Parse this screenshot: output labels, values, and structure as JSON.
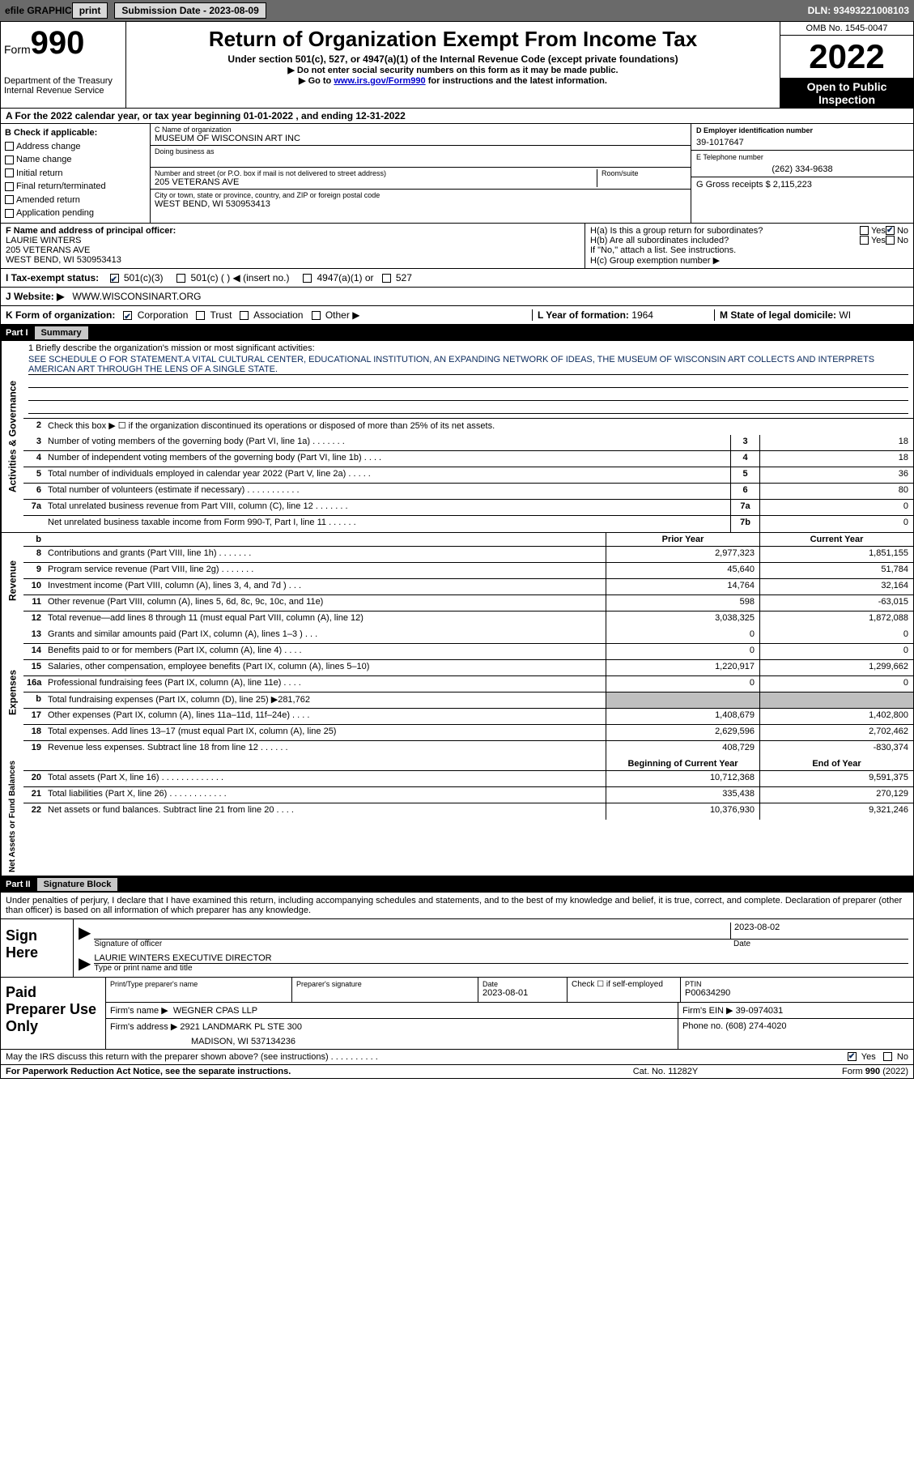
{
  "topbar": {
    "efile": "efile GRAPHIC",
    "print": "print",
    "submission_label": "Submission Date - 2023-08-09",
    "dln": "DLN: 93493221008103"
  },
  "header": {
    "form_word": "Form",
    "form_num": "990",
    "dept": "Department of the Treasury",
    "irs": "Internal Revenue Service",
    "title": "Return of Organization Exempt From Income Tax",
    "subtitle": "Under section 501(c), 527, or 4947(a)(1) of the Internal Revenue Code (except private foundations)",
    "note1": "▶ Do not enter social security numbers on this form as it may be made public.",
    "note2_pre": "▶ Go to ",
    "note2_link": "www.irs.gov/Form990",
    "note2_post": " for instructions and the latest information.",
    "omb": "OMB No. 1545-0047",
    "year": "2022",
    "open_public": "Open to Public Inspection"
  },
  "period": "A For the 2022 calendar year, or tax year beginning 01-01-2022   , and ending 12-31-2022",
  "section_b": {
    "label": "B Check if applicable:",
    "checks": [
      "Address change",
      "Name change",
      "Initial return",
      "Final return/terminated",
      "Amended return",
      "Application pending"
    ]
  },
  "section_c": {
    "name_label": "C Name of organization",
    "name": "MUSEUM OF WISCONSIN ART INC",
    "dba_label": "Doing business as",
    "street_label": "Number and street (or P.O. box if mail is not delivered to street address)",
    "room_label": "Room/suite",
    "street": "205 VETERANS AVE",
    "city_label": "City or town, state or province, country, and ZIP or foreign postal code",
    "city": "WEST BEND, WI  530953413"
  },
  "section_d": {
    "label": "D Employer identification number",
    "value": "39-1017647",
    "phone_label": "E Telephone number",
    "phone": "(262) 334-9638",
    "gross_label": "G Gross receipts $",
    "gross": "2,115,223"
  },
  "section_f": {
    "label": "F Name and address of principal officer:",
    "name": "LAURIE WINTERS",
    "street": "205 VETERANS AVE",
    "city": "WEST BEND, WI  530953413"
  },
  "section_h": {
    "ha": "H(a)  Is this a group return for subordinates?",
    "hb": "H(b)  Are all subordinates included?",
    "hb_note": "If \"No,\" attach a list. See instructions.",
    "hc": "H(c)  Group exemption number ▶"
  },
  "status": {
    "label": "I  Tax-exempt status:",
    "opts": [
      "501(c)(3)",
      "501(c) (  ) ◀ (insert no.)",
      "4947(a)(1) or",
      "527"
    ]
  },
  "website": {
    "label": "J  Website: ▶",
    "value": "WWW.WISCONSINART.ORG"
  },
  "korg": {
    "label": "K Form of organization:",
    "opts": [
      "Corporation",
      "Trust",
      "Association",
      "Other ▶"
    ],
    "year_label": "L Year of formation:",
    "year": "1964",
    "state_label": "M State of legal domicile:",
    "state": "WI"
  },
  "part1": {
    "label": "Part I",
    "title": "Summary"
  },
  "mission": {
    "label": "1  Briefly describe the organization's mission or most significant activities:",
    "text": "SEE SCHEDULE O FOR STATEMENT.A VITAL CULTURAL CENTER, EDUCATIONAL INSTITUTION, AN EXPANDING NETWORK OF IDEAS, THE MUSEUM OF WISCONSIN ART COLLECTS AND INTERPRETS AMERICAN ART THROUGH THE LENS OF A SINGLE STATE."
  },
  "line2": "Check this box ▶ ☐  if the organization discontinued its operations or disposed of more than 25% of its net assets.",
  "governance_lines": [
    {
      "n": "3",
      "t": "Number of voting members of the governing body (Part VI, line 1a)  .   .   .   .   .   .   .",
      "box": "3",
      "v": "18"
    },
    {
      "n": "4",
      "t": "Number of independent voting members of the governing body (Part VI, line 1b)   .   .   .   .",
      "box": "4",
      "v": "18"
    },
    {
      "n": "5",
      "t": "Total number of individuals employed in calendar year 2022 (Part V, line 2a)   .   .   .   .   .",
      "box": "5",
      "v": "36"
    },
    {
      "n": "6",
      "t": "Total number of volunteers (estimate if necessary)    .    .    .    .    .    .    .    .    .    .    .",
      "box": "6",
      "v": "80"
    },
    {
      "n": "7a",
      "t": "Total unrelated business revenue from Part VIII, column (C), line 12    .   .   .   .   .   .   .",
      "box": "7a",
      "v": "0"
    },
    {
      "n": "",
      "t": "Net unrelated business taxable income from Form 990-T, Part I, line 11   .   .   .   .   .   .",
      "box": "7b",
      "v": "0"
    }
  ],
  "col_headers": {
    "b": "b",
    "prior": "Prior Year",
    "current": "Current Year"
  },
  "revenue_lines": [
    {
      "n": "8",
      "t": "Contributions and grants (Part VIII, line 1h)   .   .   .   .   .   .   .",
      "p": "2,977,323",
      "c": "1,851,155"
    },
    {
      "n": "9",
      "t": "Program service revenue (Part VIII, line 2g)    .   .   .   .   .   .   .",
      "p": "45,640",
      "c": "51,784"
    },
    {
      "n": "10",
      "t": "Investment income (Part VIII, column (A), lines 3, 4, and 7d )    .   .   .",
      "p": "14,764",
      "c": "32,164"
    },
    {
      "n": "11",
      "t": "Other revenue (Part VIII, column (A), lines 5, 6d, 8c, 9c, 10c, and 11e)",
      "p": "598",
      "c": "-63,015"
    },
    {
      "n": "12",
      "t": "Total revenue—add lines 8 through 11 (must equal Part VIII, column (A), line 12)",
      "p": "3,038,325",
      "c": "1,872,088"
    }
  ],
  "expense_lines": [
    {
      "n": "13",
      "t": "Grants and similar amounts paid (Part IX, column (A), lines 1–3 )  .   .   .",
      "p": "0",
      "c": "0"
    },
    {
      "n": "14",
      "t": "Benefits paid to or for members (Part IX, column (A), line 4)  .   .   .   .",
      "p": "0",
      "c": "0"
    },
    {
      "n": "15",
      "t": "Salaries, other compensation, employee benefits (Part IX, column (A), lines 5–10)",
      "p": "1,220,917",
      "c": "1,299,662"
    },
    {
      "n": "16a",
      "t": "Professional fundraising fees (Part IX, column (A), line 11e)   .   .   .   .",
      "p": "0",
      "c": "0"
    },
    {
      "n": "b",
      "t": "Total fundraising expenses (Part IX, column (D), line 25) ▶281,762",
      "p": "",
      "c": "",
      "grey": true
    },
    {
      "n": "17",
      "t": "Other expenses (Part IX, column (A), lines 11a–11d, 11f–24e)  .   .   .   .",
      "p": "1,408,679",
      "c": "1,402,800"
    },
    {
      "n": "18",
      "t": "Total expenses. Add lines 13–17 (must equal Part IX, column (A), line 25)",
      "p": "2,629,596",
      "c": "2,702,462"
    },
    {
      "n": "19",
      "t": "Revenue less expenses. Subtract line 18 from line 12   .   .   .   .   .   .",
      "p": "408,729",
      "c": "-830,374"
    }
  ],
  "col_headers2": {
    "prior": "Beginning of Current Year",
    "current": "End of Year"
  },
  "asset_lines": [
    {
      "n": "20",
      "t": "Total assets (Part X, line 16)  .   .   .   .   .   .   .   .   .   .   .   .   .",
      "p": "10,712,368",
      "c": "9,591,375"
    },
    {
      "n": "21",
      "t": "Total liabilities (Part X, line 26)   .   .   .   .   .   .   .   .   .   .   .   .",
      "p": "335,438",
      "c": "270,129"
    },
    {
      "n": "22",
      "t": "Net assets or fund balances. Subtract line 21 from line 20    .   .   .   .",
      "p": "10,376,930",
      "c": "9,321,246"
    }
  ],
  "part2": {
    "label": "Part II",
    "title": "Signature Block"
  },
  "sig_intro": "Under penalties of perjury, I declare that I have examined this return, including accompanying schedules and statements, and to the best of my knowledge and belief, it is true, correct, and complete. Declaration of preparer (other than officer) is based on all information of which preparer has any knowledge.",
  "sign": {
    "label": "Sign Here",
    "sig_officer": "Signature of officer",
    "date": "Date",
    "date_val": "2023-08-02",
    "name_title": "LAURIE WINTERS  EXECUTIVE DIRECTOR",
    "type_label": "Type or print name and title"
  },
  "paid": {
    "label": "Paid Preparer Use Only",
    "print_name": "Print/Type preparer's name",
    "prep_sig": "Preparer's signature",
    "date_label": "Date",
    "date_val": "2023-08-01",
    "check_label": "Check ☐ if self-employed",
    "ptin_label": "PTIN",
    "ptin": "P00634290",
    "firm_name_label": "Firm's name    ▶",
    "firm_name": "WEGNER CPAS LLP",
    "firm_ein_label": "Firm's EIN ▶",
    "firm_ein": "39-0974031",
    "firm_addr_label": "Firm's address ▶",
    "firm_addr1": "2921 LANDMARK PL STE 300",
    "firm_addr2": "MADISON, WI  537134236",
    "phone_label": "Phone no.",
    "phone": "(608) 274-4020"
  },
  "may_discuss": "May the IRS discuss this return with the preparer shown above? (see instructions)    .   .   .   .   .   .   .   .   .   .",
  "paperwork": {
    "l": "For Paperwork Reduction Act Notice, see the separate instructions.",
    "c": "Cat. No. 11282Y",
    "r": "Form 990 (2022)"
  },
  "labels": {
    "activities": "Activities & Governance",
    "revenue": "Revenue",
    "expenses": "Expenses",
    "netassets": "Net Assets or Fund Balances"
  }
}
